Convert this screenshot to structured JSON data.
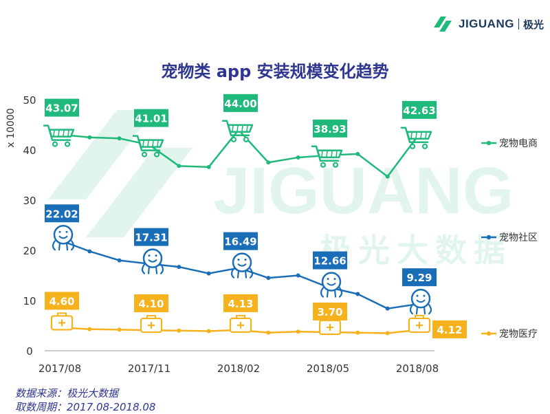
{
  "brand": {
    "name": "JIGUANG",
    "sub": "极光"
  },
  "watermark": {
    "text": "JIGUANG",
    "sub": "极光大数据"
  },
  "footer": {
    "source": "数据来源：极光大数据",
    "period": "取数周期：2017.08-2018.08"
  },
  "colors": {
    "green": "#1fb97c",
    "blue": "#1a6eb8",
    "orange": "#f5b21c",
    "title": "#2f3691"
  },
  "chart_data": {
    "type": "line",
    "title": "宠物类 app 安装规模变化趋势",
    "ylabel": "x 10000",
    "ylim": [
      0,
      50
    ],
    "yticks": [
      "0",
      "10",
      "20",
      "30",
      "40",
      "50"
    ],
    "x_tick_labels": [
      "2017/08",
      "2017/11",
      "2018/02",
      "2018/05",
      "2018/08"
    ],
    "x_points": 13,
    "legend_position": "right",
    "series": [
      {
        "name": "宠物电商",
        "color": "#1fb97c",
        "icon": "shopping-cart-icon",
        "values": [
          43.07,
          42.5,
          42.3,
          41.01,
          36.8,
          36.6,
          44.0,
          37.5,
          38.5,
          38.93,
          39.2,
          34.7,
          42.63
        ],
        "labels": [
          {
            "i": 0,
            "text": "43.07"
          },
          {
            "i": 3,
            "text": "41.01"
          },
          {
            "i": 6,
            "text": "44.00"
          },
          {
            "i": 9,
            "text": "38.93"
          },
          {
            "i": 12,
            "text": "42.63"
          }
        ]
      },
      {
        "name": "宠物社区",
        "color": "#1a6eb8",
        "icon": "pet-paw-icon",
        "values": [
          22.02,
          19.8,
          18.0,
          17.31,
          16.7,
          15.4,
          16.49,
          14.5,
          15.0,
          12.66,
          11.3,
          8.4,
          9.29
        ],
        "labels": [
          {
            "i": 0,
            "text": "22.02"
          },
          {
            "i": 3,
            "text": "17.31"
          },
          {
            "i": 6,
            "text": "16.49"
          },
          {
            "i": 9,
            "text": "12.66"
          },
          {
            "i": 12,
            "text": "9.29"
          }
        ]
      },
      {
        "name": "宠物医疗",
        "color": "#f5b21c",
        "icon": "medical-kit-icon",
        "values": [
          4.6,
          4.3,
          4.2,
          4.1,
          4.0,
          3.9,
          4.13,
          3.6,
          3.8,
          3.7,
          3.6,
          3.5,
          4.12
        ],
        "labels": [
          {
            "i": 0,
            "text": "4.60"
          },
          {
            "i": 3,
            "text": "4.10"
          },
          {
            "i": 6,
            "text": "4.13"
          },
          {
            "i": 9,
            "text": "3.70"
          },
          {
            "i": 12,
            "text": "4.12"
          }
        ]
      }
    ]
  }
}
